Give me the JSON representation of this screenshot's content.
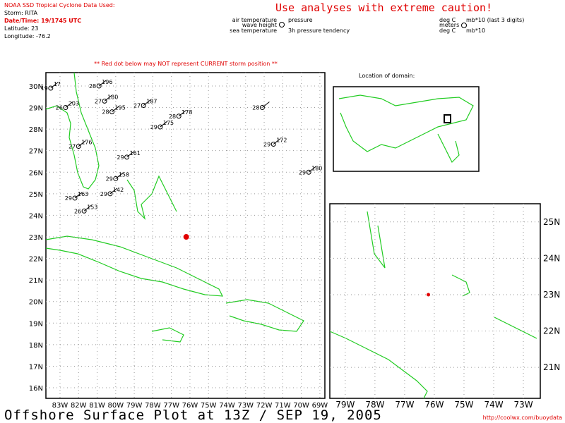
{
  "header": {
    "source": "NOAA SSD Tropical Cyclone Data Used:",
    "storm": "Storm: RITA",
    "datetime": "Date/Time: 19/1745 UTC",
    "latitude_label": "Latitude:",
    "longitude_label": "Longitude:",
    "caution": "Use analyses with extreme caution!",
    "warning": "** Red dot below may NOT represent CURRENT storm position **",
    "location_title": "Location of domain:"
  },
  "storm": {
    "latitude": 23,
    "longitude": -76.2
  },
  "legend": {
    "left": [
      "air temperature",
      "wave height",
      "sea temperature"
    ],
    "middle": [
      "pressure",
      "3h pressure tendency"
    ],
    "units_left": [
      "deg C",
      "meters",
      "deg C"
    ],
    "units_right": [
      "mb*10 (last 3 digits)",
      "mb*10"
    ]
  },
  "main_map": {
    "xlim": [
      -83.76,
      -68.73
    ],
    "ylim": [
      15.51,
      30.62
    ],
    "xticks": [
      {
        "value": -83,
        "label": "83W"
      },
      {
        "value": -82,
        "label": "82W"
      },
      {
        "value": -81,
        "label": "81W"
      },
      {
        "value": -80,
        "label": "80W"
      },
      {
        "value": -79,
        "label": "79W"
      },
      {
        "value": -78,
        "label": "78W"
      },
      {
        "value": -77,
        "label": "77W"
      },
      {
        "value": -76,
        "label": "76W"
      },
      {
        "value": -75,
        "label": "75W"
      },
      {
        "value": -74,
        "label": "74W"
      },
      {
        "value": -73,
        "label": "73W"
      },
      {
        "value": -72,
        "label": "72W"
      },
      {
        "value": -71,
        "label": "71W"
      },
      {
        "value": -70,
        "label": "70W"
      },
      {
        "value": -69,
        "label": "69W"
      }
    ],
    "yticks": [
      {
        "value": 16,
        "label": "16N"
      },
      {
        "value": 17,
        "label": "17N"
      },
      {
        "value": 18,
        "label": "18N"
      },
      {
        "value": 19,
        "label": "19N"
      },
      {
        "value": 20,
        "label": "20N"
      },
      {
        "value": 21,
        "label": "21N"
      },
      {
        "value": 22,
        "label": "22N"
      },
      {
        "value": 23,
        "label": "23N"
      },
      {
        "value": 24,
        "label": "24N"
      },
      {
        "value": 25,
        "label": "25N"
      },
      {
        "value": 26,
        "label": "26N"
      },
      {
        "value": 27,
        "label": "27N"
      },
      {
        "value": 28,
        "label": "28N"
      },
      {
        "value": 29,
        "label": "29N"
      },
      {
        "value": 30,
        "label": "30N"
      }
    ],
    "stations": [
      {
        "lat": 29.9,
        "lon": -83.5,
        "temp": "19",
        "press": "17"
      },
      {
        "lat": 29.0,
        "lon": -82.7,
        "temp": "26",
        "press": "203"
      },
      {
        "lat": 30.0,
        "lon": -80.9,
        "temp": "28",
        "press": "196"
      },
      {
        "lat": 29.3,
        "lon": -80.6,
        "temp": "27",
        "press": "180"
      },
      {
        "lat": 28.8,
        "lon": -80.2,
        "temp": "28",
        "press": "195"
      },
      {
        "lat": 29.1,
        "lon": -78.5,
        "temp": "27",
        "press": "187"
      },
      {
        "lat": 28.6,
        "lon": -76.6,
        "temp": "28",
        "press": "178"
      },
      {
        "lat": 28.1,
        "lon": -77.6,
        "temp": "29",
        "press": "175"
      },
      {
        "lat": 27.2,
        "lon": -82.0,
        "temp": "27",
        "press": "176"
      },
      {
        "lat": 26.7,
        "lon": -79.4,
        "temp": "29",
        "press": "161"
      },
      {
        "lat": 25.7,
        "lon": -80.0,
        "temp": "29",
        "press": "158"
      },
      {
        "lat": 25.0,
        "lon": -80.3,
        "temp": "29",
        "press": "142"
      },
      {
        "lat": 24.8,
        "lon": -82.2,
        "temp": "29",
        "press": "163"
      },
      {
        "lat": 24.2,
        "lon": -81.7,
        "temp": "26",
        "press": "153"
      },
      {
        "lat": 27.3,
        "lon": -71.5,
        "temp": "29",
        "press": "172"
      },
      {
        "lat": 26.0,
        "lon": -69.6,
        "temp": "29",
        "press": "180"
      },
      {
        "lat": 29.0,
        "lon": -72.1,
        "temp": "28",
        "press": ""
      }
    ]
  },
  "inset_map": {
    "xlim": [
      -79.52,
      -72.43
    ],
    "ylim": [
      20.15,
      25.5
    ],
    "xticks": [
      {
        "value": -79,
        "label": "79W"
      },
      {
        "value": -78,
        "label": "78W"
      },
      {
        "value": -77,
        "label": "77W"
      },
      {
        "value": -76,
        "label": "76W"
      },
      {
        "value": -75,
        "label": "75W"
      },
      {
        "value": -74,
        "label": "74W"
      },
      {
        "value": -73,
        "label": "73W"
      }
    ],
    "yticks": [
      {
        "value": 21,
        "label": "21N"
      },
      {
        "value": 22,
        "label": "22N"
      },
      {
        "value": 23,
        "label": "23N"
      },
      {
        "value": 24,
        "label": "24N"
      },
      {
        "value": 25,
        "label": "25N"
      }
    ]
  },
  "footer": {
    "title": "Offshore Surface Plot at 13Z / SEP 19, 2005",
    "url": "http://coolwx.com/buoydata"
  }
}
